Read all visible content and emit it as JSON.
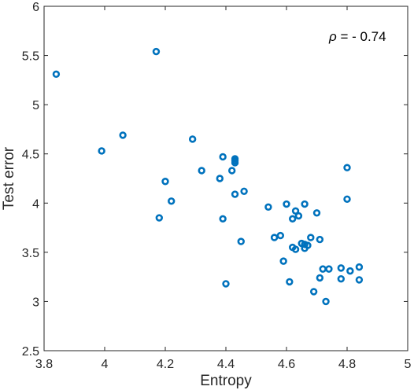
{
  "chart_data": {
    "type": "scatter",
    "title": "",
    "xlabel": "Entropy",
    "ylabel": "Test error",
    "xlim": [
      3.8,
      5
    ],
    "ylim": [
      2.5,
      6
    ],
    "xticks": [
      "3.8",
      "4",
      "4.2",
      "4.4",
      "4.6",
      "4.8",
      "5"
    ],
    "yticks": [
      "2.5",
      "3",
      "3.5",
      "4",
      "4.5",
      "5",
      "5.5",
      "6"
    ],
    "grid": false,
    "annotation": {
      "symbol": "ρ",
      "text": " = - 0.74"
    },
    "marker_color": "#0072bd",
    "series": [
      {
        "x": [
          3.84,
          3.99,
          4.06,
          4.17,
          4.18,
          4.2,
          4.22,
          4.29,
          4.32,
          4.38,
          4.39,
          4.39,
          4.4,
          4.42,
          4.43,
          4.43,
          4.43,
          4.43,
          4.45,
          4.46,
          4.54,
          4.56,
          4.58,
          4.59,
          4.6,
          4.61,
          4.62,
          4.62,
          4.63,
          4.63,
          4.64,
          4.65,
          4.66,
          4.66,
          4.66,
          4.67,
          4.68,
          4.69,
          4.7,
          4.71,
          4.71,
          4.72,
          4.73,
          4.74,
          4.78,
          4.78,
          4.8,
          4.8,
          4.81,
          4.84,
          4.84
        ],
        "y": [
          5.31,
          4.53,
          4.69,
          5.54,
          3.85,
          4.22,
          4.02,
          4.65,
          4.33,
          4.25,
          4.47,
          3.84,
          3.18,
          4.33,
          4.45,
          4.43,
          4.41,
          4.09,
          3.61,
          4.12,
          3.96,
          3.65,
          3.67,
          3.41,
          3.99,
          3.2,
          3.55,
          3.84,
          3.92,
          3.53,
          3.87,
          3.59,
          3.54,
          3.58,
          3.99,
          3.57,
          3.65,
          3.1,
          3.9,
          3.63,
          3.24,
          3.33,
          3.0,
          3.33,
          3.34,
          3.23,
          4.36,
          4.04,
          3.31,
          3.35,
          3.22
        ]
      }
    ]
  }
}
